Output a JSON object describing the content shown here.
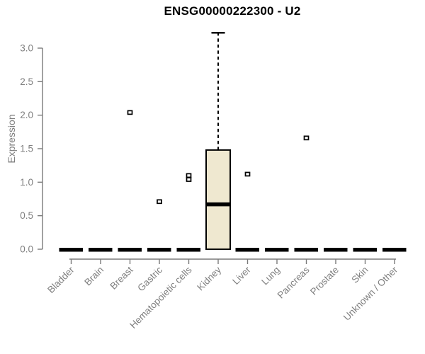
{
  "chart_data": {
    "type": "boxplot",
    "title": "ENSG00000222300 - U2",
    "xlabel": "",
    "ylabel": "Expression",
    "ylim": [
      0.0,
      3.3
    ],
    "yticks": [
      0.0,
      0.5,
      1.0,
      1.5,
      2.0,
      2.5,
      3.0
    ],
    "grid": false,
    "legend": "none",
    "categories": [
      "Bladder",
      "Brain",
      "Breast",
      "Gastric",
      "Hematopoietic cells",
      "Kidney",
      "Liver",
      "Lung",
      "Pancreas",
      "Prostate",
      "Skin",
      "Unknown / Other"
    ],
    "boxes": [
      {
        "category": "Bladder",
        "q1": 0,
        "median": 0,
        "q3": 0,
        "whisker_low": 0,
        "whisker_high": 0,
        "outliers": []
      },
      {
        "category": "Brain",
        "q1": 0,
        "median": 0,
        "q3": 0,
        "whisker_low": 0,
        "whisker_high": 0,
        "outliers": []
      },
      {
        "category": "Breast",
        "q1": 0,
        "median": 0,
        "q3": 0,
        "whisker_low": 0,
        "whisker_high": 0,
        "outliers": [
          2.04
        ]
      },
      {
        "category": "Gastric",
        "q1": 0,
        "median": 0,
        "q3": 0,
        "whisker_low": 0,
        "whisker_high": 0,
        "outliers": [
          0.71
        ]
      },
      {
        "category": "Hematopoietic cells",
        "q1": 0,
        "median": 0,
        "q3": 0,
        "whisker_low": 0,
        "whisker_high": 0,
        "outliers": [
          1.04,
          1.1
        ]
      },
      {
        "category": "Kidney",
        "q1": 0,
        "median": 0.67,
        "q3": 1.48,
        "whisker_low": 0,
        "whisker_high": 3.23,
        "outliers": []
      },
      {
        "category": "Liver",
        "q1": 0,
        "median": 0,
        "q3": 0,
        "whisker_low": 0,
        "whisker_high": 0,
        "outliers": [
          1.12
        ]
      },
      {
        "category": "Lung",
        "q1": 0,
        "median": 0,
        "q3": 0,
        "whisker_low": 0,
        "whisker_high": 0,
        "outliers": []
      },
      {
        "category": "Pancreas",
        "q1": 0,
        "median": 0,
        "q3": 0,
        "whisker_low": 0,
        "whisker_high": 0,
        "outliers": [
          1.66
        ]
      },
      {
        "category": "Prostate",
        "q1": 0,
        "median": 0,
        "q3": 0,
        "whisker_low": 0,
        "whisker_high": 0,
        "outliers": []
      },
      {
        "category": "Skin",
        "q1": 0,
        "median": 0,
        "q3": 0,
        "whisker_low": 0,
        "whisker_high": 0,
        "outliers": []
      },
      {
        "category": "Unknown / Other",
        "q1": 0,
        "median": 0,
        "q3": 0,
        "whisker_low": 0,
        "whisker_high": 0,
        "outliers": []
      }
    ],
    "colors": {
      "box_fill": "#efe8d0",
      "box_stroke": "#000000",
      "median": "#000000",
      "collapsed_bar": "#000000",
      "whisker": "#000000",
      "outlier_fill": "#ffffff",
      "outlier_stroke": "#000000",
      "axis_line": "#7a7a7a",
      "tick_text": "#7f7f7f",
      "title_text": "#000000",
      "background": "#ffffff"
    }
  }
}
